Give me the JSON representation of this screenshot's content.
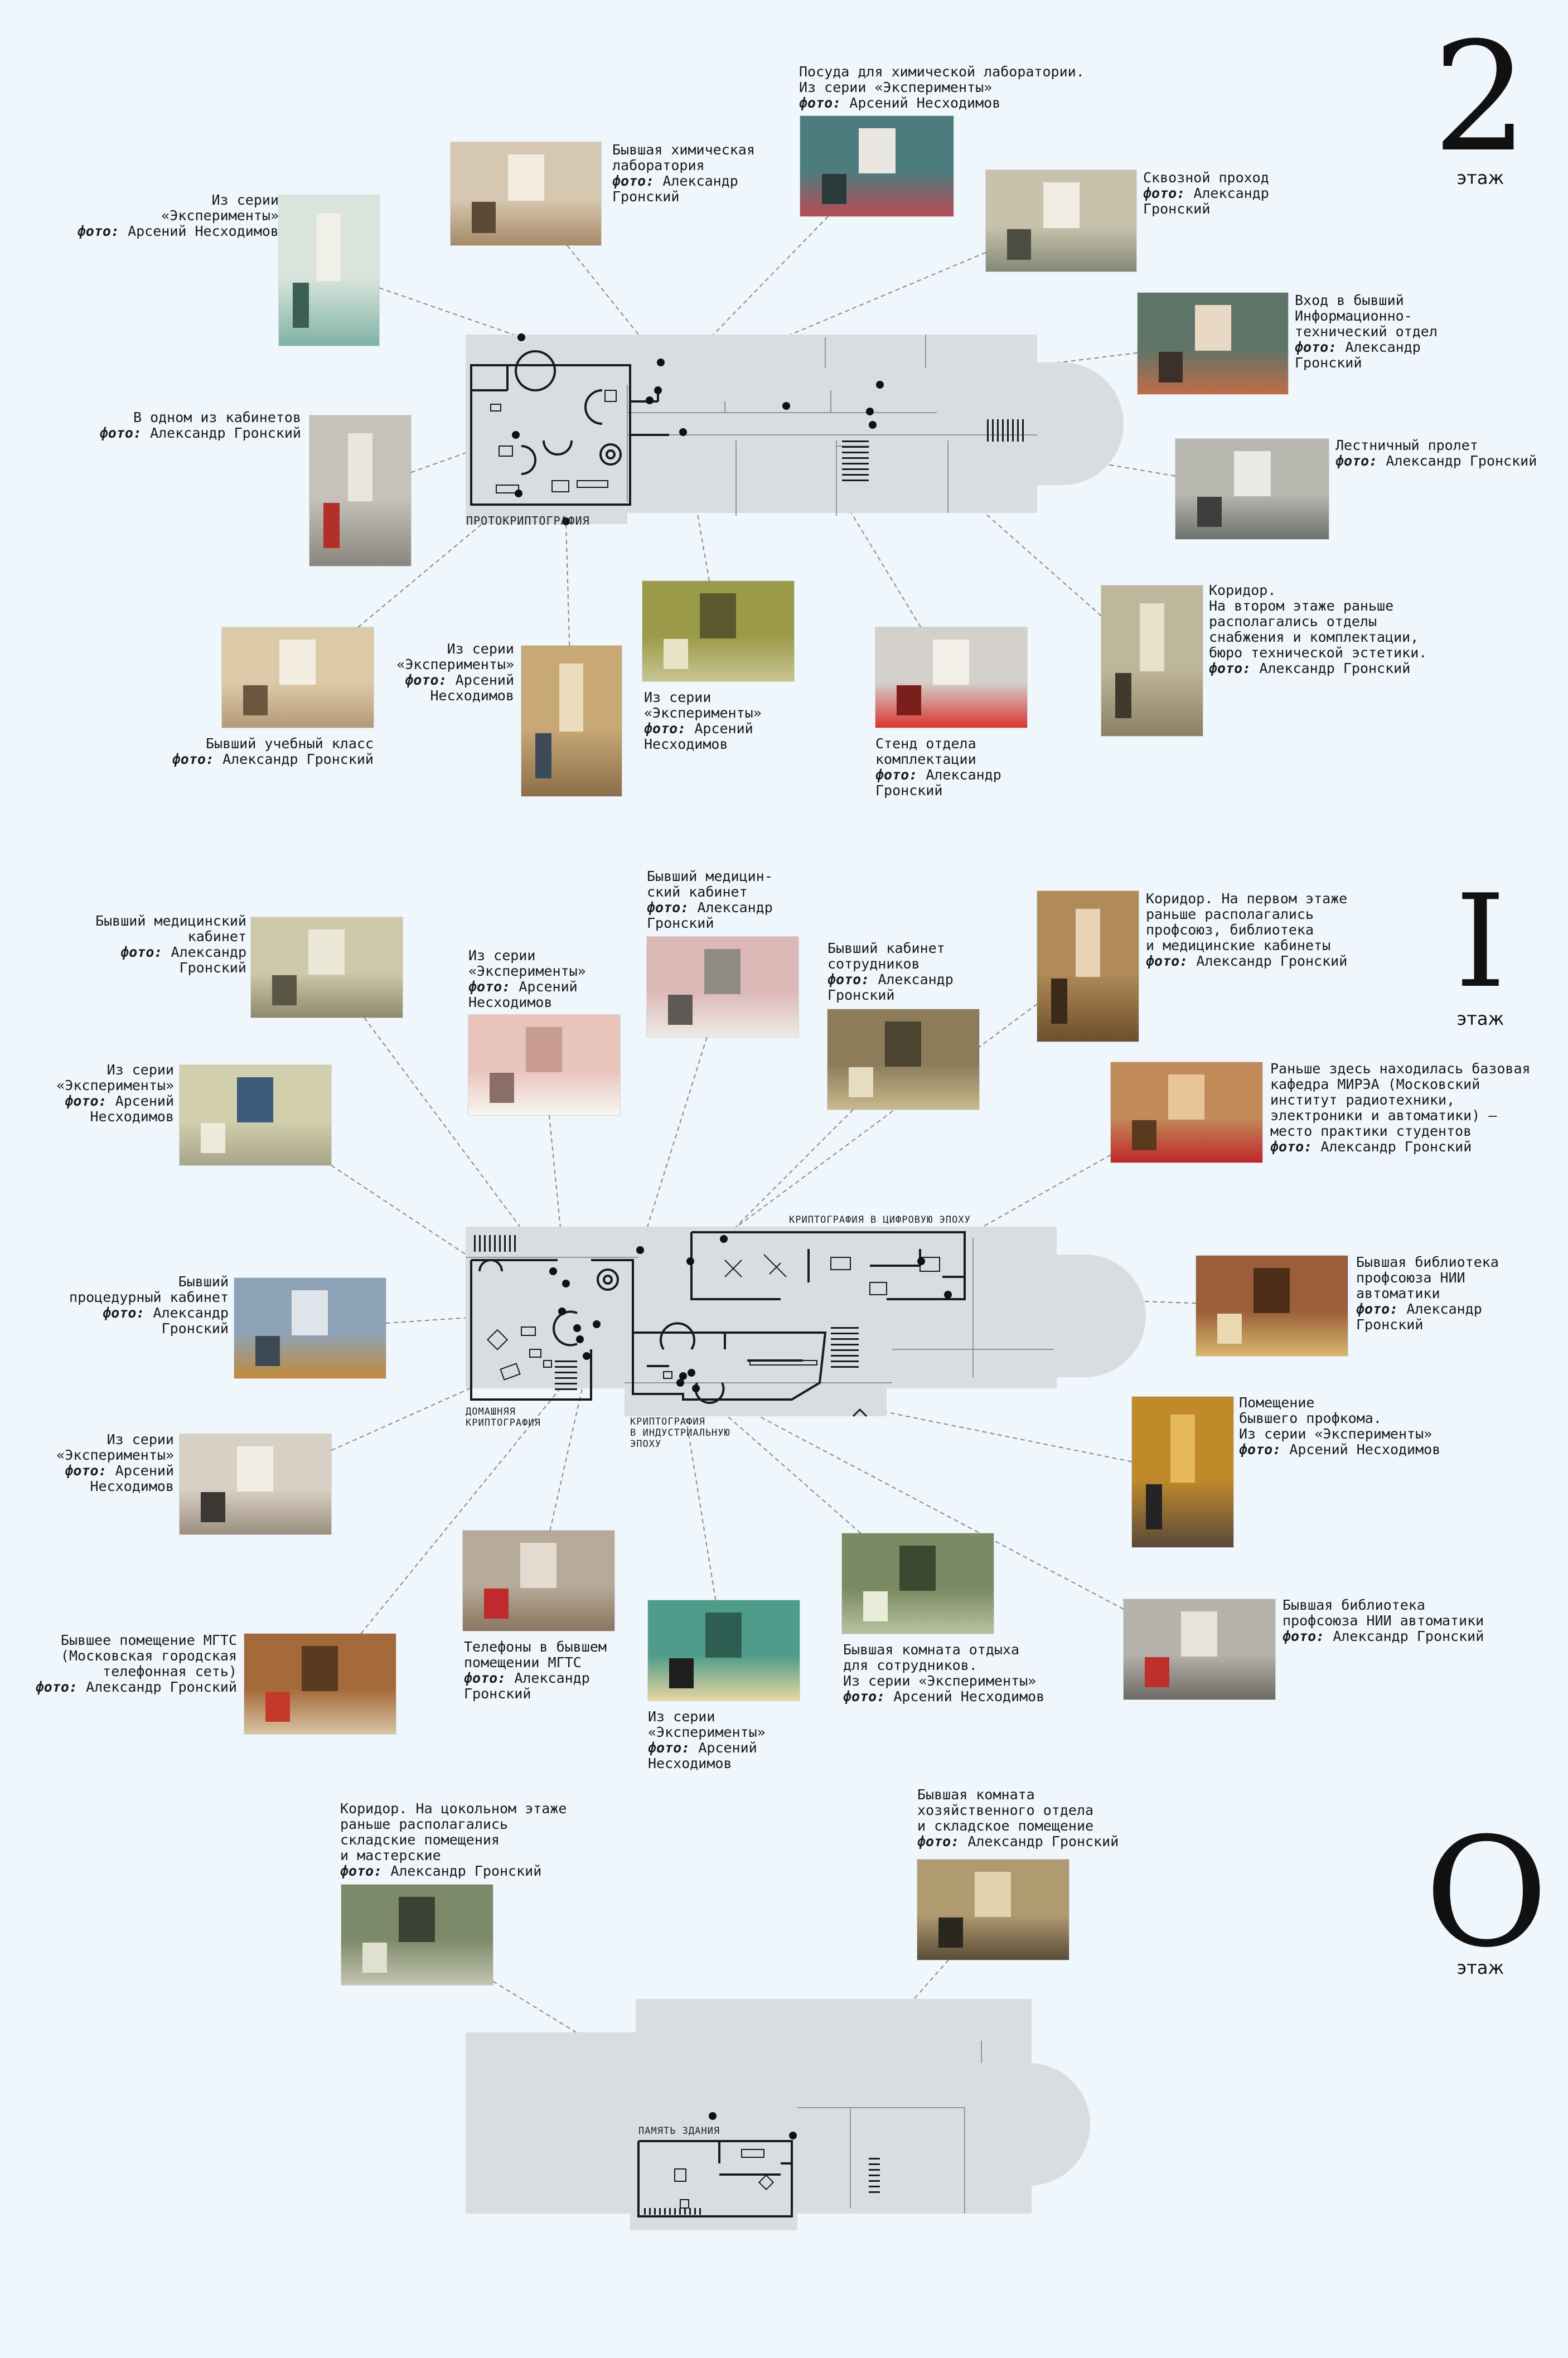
{
  "colors": {
    "background": "#eff6fc",
    "plan_fill": "#d8dde2",
    "plan_line": "#8e969e",
    "wall": "#1a1a1a",
    "leader": "#8a8a8a"
  },
  "floors": [
    {
      "num": "2",
      "word": "этаж"
    },
    {
      "num": "I",
      "word": "этаж"
    },
    {
      "num": "O",
      "word": "этаж"
    }
  ],
  "zones": {
    "z2": "ПРОТОКРИПТОГРАФИЯ",
    "z1a": "КРИПТОГРАФИЯ В ЦИФРОВУЮ ЭПОХУ",
    "z1b": "ДОМАШНЯЯ\nКРИПТОГРАФИЯ",
    "z1c": "КРИПТОГРАФИЯ\nВ ИНДУСТРИАЛЬНУЮ\nЭПОХУ",
    "z0": "ПАМЯТЬ ЗДАНИЯ"
  },
  "credit_prefix": "фото:",
  "photos": [
    {
      "id": "p2-exp-ladder",
      "icon": "ladder-photo",
      "lines": [
        "Из серии",
        "«Эксперименты»"
      ],
      "credit": "Арсений Несходимов"
    },
    {
      "id": "p2-chem-lab",
      "icon": "lab-photo",
      "lines": [
        "Бывшая химическая",
        "лаборатория"
      ],
      "credit": [
        "Александр",
        "Гронский"
      ]
    },
    {
      "id": "p2-glassware",
      "icon": "glassware-photo",
      "lines": [
        "Посуда для химической лаборатории.",
        "Из серии «Эксперименты»"
      ],
      "credit": "Арсений Несходимов"
    },
    {
      "id": "p2-passage",
      "icon": "passage-photo",
      "lines": [
        "Сквозной проход"
      ],
      "credit": [
        "Александр",
        "Гронский"
      ]
    },
    {
      "id": "p2-info-dept",
      "icon": "door-photo",
      "lines": [
        "Вход в бывший",
        "Информационно-",
        "технический отдел"
      ],
      "credit": [
        "Александр",
        "Гронский"
      ]
    },
    {
      "id": "p2-office",
      "icon": "office-photo",
      "lines": [
        "В одном из кабинетов"
      ],
      "credit": "Александр Гронский"
    },
    {
      "id": "p2-stairs",
      "icon": "stairs-photo",
      "lines": [
        "Лестничный пролет"
      ],
      "credit": "Александр Гронский"
    },
    {
      "id": "p2-classroom",
      "icon": "classroom-photo",
      "lines": [
        "Бывший учебный класс"
      ],
      "credit": "Александр Гронский"
    },
    {
      "id": "p2-exp-chair",
      "icon": "armchair-photo",
      "lines": [
        "Из серии",
        "«Эксперименты»"
      ],
      "credit": [
        "Арсений",
        "Несходимов"
      ]
    },
    {
      "id": "p2-exp-window",
      "icon": "window-photo",
      "lines": [
        "Из серии",
        "«Эксперименты»"
      ],
      "credit": [
        "Арсений",
        "Несходимов"
      ]
    },
    {
      "id": "p2-stand",
      "icon": "stand-photo",
      "lines": [
        "Стенд отдела",
        "комплектации"
      ],
      "credit": [
        "Александр",
        "Гронский"
      ]
    },
    {
      "id": "p2-corridor",
      "icon": "corridor-photo",
      "lines": [
        "Коридор.",
        "На втором этаже раньше",
        "располагались отделы",
        "снабжения и комплектации,",
        "бюро технической эстетики."
      ],
      "credit": "Александр Гронский"
    },
    {
      "id": "p1-med-left",
      "icon": "sink-photo",
      "lines": [
        "Бывший медицинский",
        "кабинет"
      ],
      "credit": [
        "Александр",
        "Гронский"
      ]
    },
    {
      "id": "p1-exp-pink",
      "icon": "screen-photo",
      "lines": [
        "Из серии",
        "«Эксперименты»"
      ],
      "credit": [
        "Арсений",
        "Несходимов"
      ]
    },
    {
      "id": "p1-med-mid",
      "icon": "medroom-photo",
      "lines": [
        "Бывший медицин-",
        "ский кабинет"
      ],
      "credit": [
        "Александр",
        "Гронский"
      ]
    },
    {
      "id": "p1-staff",
      "icon": "staffroom-photo",
      "lines": [
        "Бывший кабинет",
        "сотрудников"
      ],
      "credit": [
        "Александр",
        "Гронский"
      ]
    },
    {
      "id": "p1-corridor",
      "icon": "corridor-photo",
      "lines": [
        "Коридор. На первом этаже",
        "раньше располагались",
        "профсоюз, библиотека",
        "и медицинские кабинеты"
      ],
      "credit": "Александр Гронский"
    },
    {
      "id": "p1-exp-tiles",
      "icon": "tiles-photo",
      "lines": [
        "Из серии",
        "«Эксперименты»"
      ],
      "credit": [
        "Арсений",
        "Несходимов"
      ]
    },
    {
      "id": "p1-mirea",
      "icon": "hall-photo",
      "lines": [
        "Раньше здесь находилась базовая",
        "кафедра МИРЭА (Московский",
        "институт радиотехники,",
        "электроники и автоматики) —",
        "место практики студентов"
      ],
      "credit": "Александр Гронский"
    },
    {
      "id": "p1-procedure",
      "icon": "cabinet-photo",
      "lines": [
        "Бывший",
        "процедурный кабинет"
      ],
      "credit": [
        "Александр",
        "Гронский"
      ]
    },
    {
      "id": "p1-library",
      "icon": "bookshelf-photo",
      "lines": [
        "Бывшая библиотека",
        "профсоюза НИИ",
        "автоматики"
      ],
      "credit": [
        "Александр",
        "Гронский"
      ]
    },
    {
      "id": "p1-exp-two",
      "icon": "figures-photo",
      "lines": [
        "Из серии",
        "«Эксперименты»"
      ],
      "credit": [
        "Арсений",
        "Несходимов"
      ]
    },
    {
      "id": "p1-profkom",
      "icon": "seated-man-photo",
      "lines": [
        "Помещение",
        "бывшего профкома.",
        "Из серии «Эксперименты»"
      ],
      "credit": "Арсений Несходимов"
    },
    {
      "id": "p1-phones",
      "icon": "phones-photo",
      "lines": [
        "Телефоны в бывшем",
        "помещении МГТС"
      ],
      "credit": [
        "Александр",
        "Гронский"
      ]
    },
    {
      "id": "p1-mgts",
      "icon": "shelves-photo",
      "lines": [
        "Бывшее помещение МГТС",
        "(Московская городская",
        "телефонная сеть)"
      ],
      "credit": "Александр Гронский"
    },
    {
      "id": "p1-exp-floor",
      "icon": "floor-photo",
      "lines": [
        "Из серии",
        "«Эксперименты»"
      ],
      "credit": [
        "Арсений",
        "Несходимов"
      ]
    },
    {
      "id": "p1-rest",
      "icon": "restroom-photo",
      "lines": [
        "Бывшая комната отдыха",
        "для сотрудников.",
        "Из серии «Эксперименты»"
      ],
      "credit": "Арсений Несходимов"
    },
    {
      "id": "p1-library2",
      "icon": "archive-photo",
      "lines": [
        "Бывшая библиотека",
        "профсоюза НИИ автоматики"
      ],
      "credit": "Александр Гронский"
    },
    {
      "id": "p0-corridor",
      "icon": "basement-photo",
      "lines": [
        "Коридор. На цокольном этаже",
        "раньше располагались",
        "складские помещения",
        "и мастерские"
      ],
      "credit": "Александр Гронский"
    },
    {
      "id": "p0-storage",
      "icon": "storage-photo",
      "lines": [
        "Бывшая комната",
        "хозяйственного отдела",
        "и складское помещение"
      ],
      "credit": "Александр Гронский"
    }
  ]
}
